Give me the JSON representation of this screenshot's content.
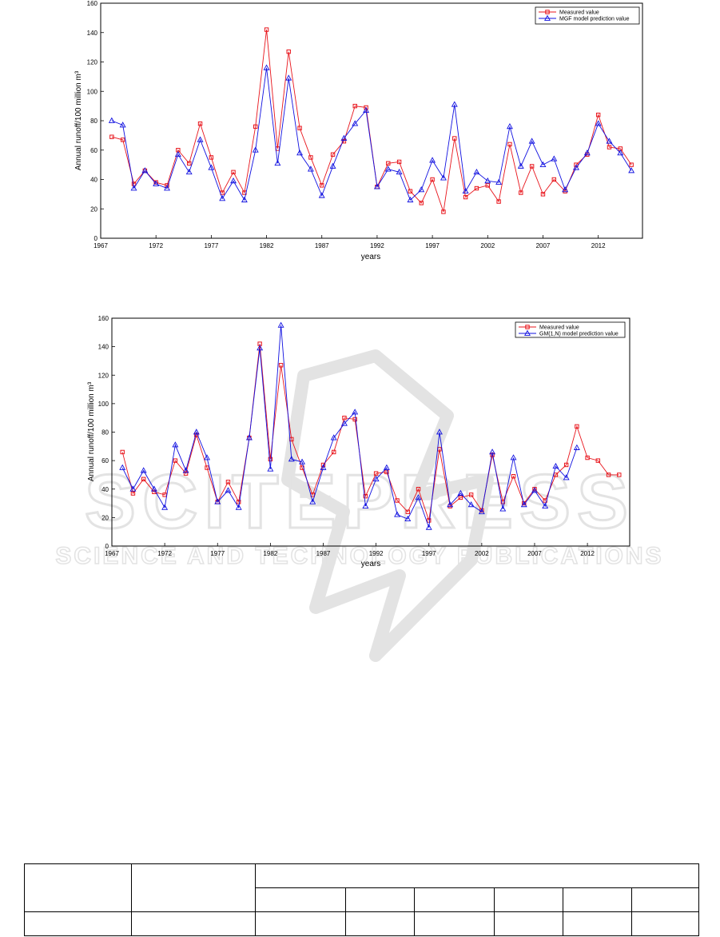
{
  "charts": {
    "top": {
      "chart_data": {
        "type": "line",
        "xlabel": "years",
        "ylabel": "Annual runoff/100 million m³",
        "xlim": [
          1967,
          2016
        ],
        "ylim": [
          0,
          160
        ],
        "x_ticks": [
          1967,
          1972,
          1977,
          1982,
          1987,
          1992,
          1997,
          2002,
          2007,
          2012
        ],
        "y_ticks": [
          0,
          20,
          40,
          60,
          80,
          100,
          120,
          140,
          160
        ],
        "legend_position": "top-right",
        "series": [
          {
            "name": "Measured value",
            "color": "#e8141b",
            "marker": "square",
            "x": [
              1968,
              1969,
              1970,
              1971,
              1972,
              1973,
              1974,
              1975,
              1976,
              1977,
              1978,
              1979,
              1980,
              1981,
              1982,
              1983,
              1984,
              1985,
              1986,
              1987,
              1988,
              1989,
              1990,
              1991,
              1992,
              1993,
              1994,
              1995,
              1996,
              1997,
              1998,
              1999,
              2000,
              2001,
              2002,
              2003,
              2004,
              2005,
              2006,
              2007,
              2008,
              2009,
              2010,
              2011,
              2012,
              2013,
              2014,
              2015
            ],
            "values": [
              69,
              67,
              37,
              46,
              38,
              36,
              60,
              51,
              78,
              55,
              31,
              45,
              31,
              76,
              142,
              61,
              127,
              75,
              55,
              36,
              57,
              66,
              90,
              89,
              35,
              51,
              52,
              32,
              24,
              40,
              18,
              68,
              28,
              34,
              36,
              25,
              64,
              31,
              49,
              30,
              40,
              32,
              50,
              57,
              84,
              62,
              61,
              50
            ]
          },
          {
            "name": "MGF model prediction value",
            "color": "#1010e0",
            "marker": "triangle",
            "x": [
              1968,
              1969,
              1970,
              1971,
              1972,
              1973,
              1974,
              1975,
              1976,
              1977,
              1978,
              1979,
              1980,
              1981,
              1982,
              1983,
              1984,
              1985,
              1986,
              1987,
              1988,
              1989,
              1990,
              1991,
              1992,
              1993,
              1994,
              1995,
              1996,
              1997,
              1998,
              1999,
              2000,
              2001,
              2002,
              2003,
              2004,
              2005,
              2006,
              2007,
              2008,
              2009,
              2010,
              2011,
              2012,
              2013,
              2014,
              2015
            ],
            "values": [
              80,
              77,
              34,
              46,
              37,
              34,
              57,
              45,
              67,
              48,
              27,
              39,
              26,
              60,
              116,
              51,
              109,
              58,
              47,
              29,
              49,
              68,
              78,
              87,
              35,
              47,
              45,
              26,
              33,
              53,
              41,
              91,
              32,
              45,
              39,
              38,
              76,
              49,
              66,
              50,
              54,
              33,
              48,
              58,
              78,
              66,
              58,
              46
            ]
          }
        ]
      }
    },
    "bottom": {
      "chart_data": {
        "type": "line",
        "xlabel": "years",
        "ylabel": "Annual runoff/100 million m³",
        "xlim": [
          1967,
          2016
        ],
        "ylim": [
          0,
          160
        ],
        "x_ticks": [
          1967,
          1972,
          1977,
          1982,
          1987,
          1992,
          1997,
          2002,
          2007,
          2012
        ],
        "y_ticks": [
          0,
          20,
          40,
          60,
          80,
          100,
          120,
          140,
          160
        ],
        "legend_position": "top-right",
        "series": [
          {
            "name": "Measured value",
            "color": "#e8141b",
            "marker": "square",
            "x": [
              1968,
              1969,
              1970,
              1971,
              1972,
              1973,
              1974,
              1975,
              1976,
              1977,
              1978,
              1979,
              1980,
              1981,
              1982,
              1983,
              1984,
              1985,
              1986,
              1987,
              1988,
              1989,
              1990,
              1991,
              1992,
              1993,
              1994,
              1995,
              1996,
              1997,
              1998,
              1999,
              2000,
              2001,
              2002,
              2003,
              2004,
              2005,
              2006,
              2007,
              2008,
              2009,
              2010,
              2011,
              2012,
              2013,
              2014,
              2015
            ],
            "values": [
              66,
              37,
              47,
              38,
              36,
              60,
              51,
              78,
              55,
              31,
              45,
              31,
              76,
              142,
              61,
              127,
              75,
              55,
              36,
              57,
              66,
              90,
              89,
              35,
              51,
              52,
              32,
              24,
              40,
              18,
              68,
              28,
              34,
              36,
              25,
              64,
              31,
              49,
              30,
              40,
              32,
              50,
              57,
              84,
              62,
              60,
              50,
              50
            ]
          },
          {
            "name": "GM(1,N) model prediction value",
            "color": "#1010e0",
            "marker": "triangle",
            "x": [
              1968,
              1969,
              1970,
              1971,
              1972,
              1973,
              1974,
              1975,
              1976,
              1977,
              1978,
              1979,
              1980,
              1981,
              1982,
              1983,
              1984,
              1985,
              1986,
              1987,
              1988,
              1989,
              1990,
              1991,
              1992,
              1993,
              1994,
              1995,
              1996,
              1997,
              1998,
              1999,
              2000,
              2001,
              2002,
              2003,
              2004,
              2005,
              2006,
              2007,
              2008,
              2009,
              2010,
              2011
            ],
            "values": [
              55,
              40,
              53,
              40,
              27,
              71,
              53,
              80,
              62,
              31,
              39,
              27,
              76,
              139,
              54,
              155,
              61,
              59,
              31,
              55,
              76,
              86,
              94,
              28,
              47,
              55,
              22,
              19,
              34,
              13,
              80,
              29,
              37,
              29,
              24,
              66,
              26,
              62,
              29,
              39,
              28,
              56,
              48,
              69
            ]
          }
        ]
      }
    }
  },
  "watermark": {
    "big_text": "SCITEPRESS",
    "small_text": "SCIENCE AND TECHNOLOGY PUBLICATIONS"
  }
}
